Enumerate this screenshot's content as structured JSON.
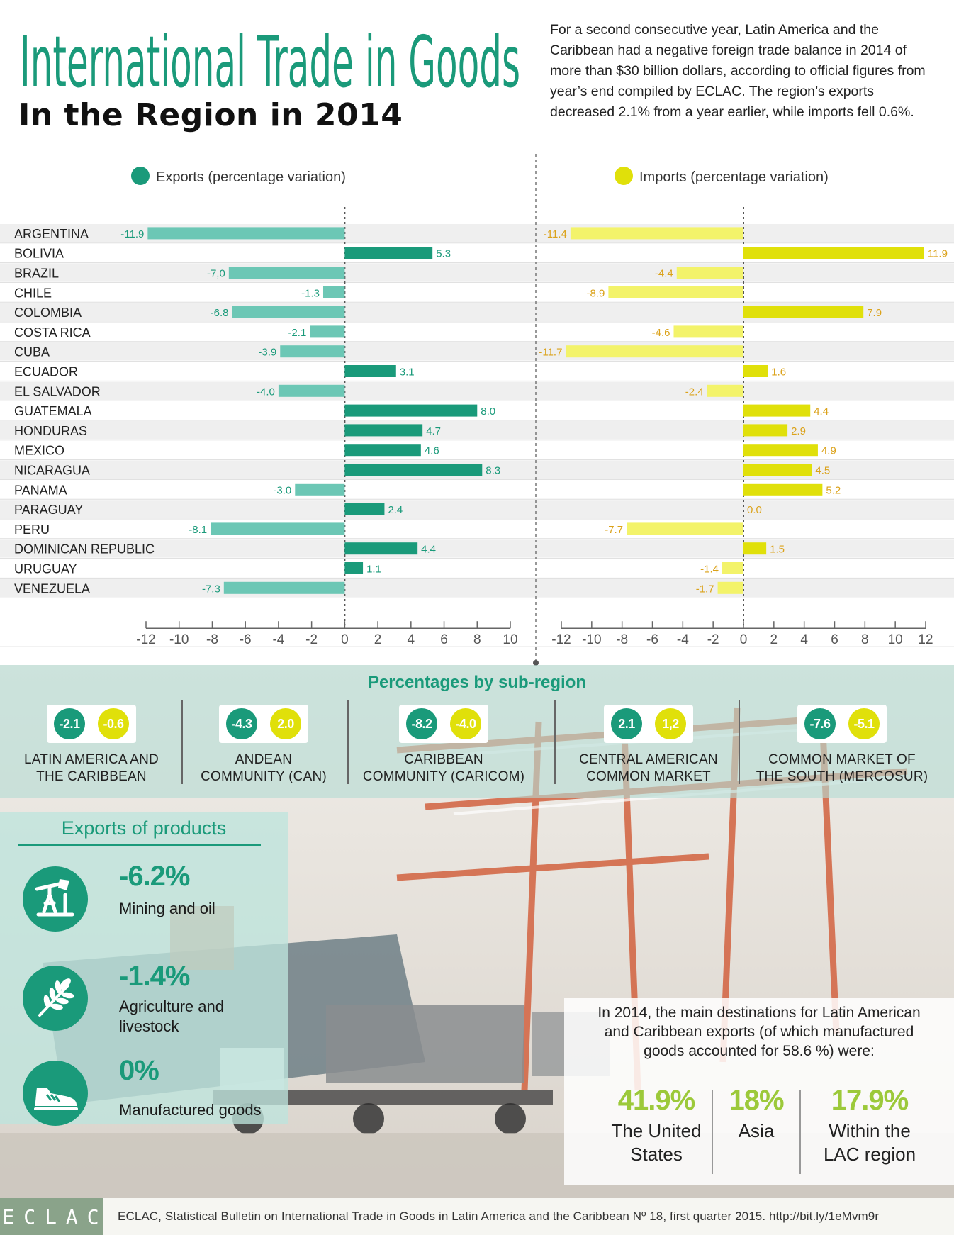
{
  "header": {
    "title": "International Trade in Goods",
    "subtitle": "In the Region in 2014",
    "intro": "For a second consecutive year, Latin America and the Caribbean had a negative foreign trade balance in 2014 of more than $30 billion dollars, according to official figures from year’s end compiled by ECLAC. The region’s exports decreased 2.1% from a year earlier, while imports fell 0.6%."
  },
  "colors": {
    "exports": "#1a9a7a",
    "exports_neg": "#6cc7b5",
    "imports": "#e0e00a",
    "imports_neg": "#f3f36a",
    "title": "#1a9a7a",
    "accent_green": "#9cc93a",
    "label_exports": "#1a9a7a",
    "label_imports": "#dba21a"
  },
  "chart_data": [
    {
      "type": "bar",
      "title": "Exports (percentage variation)",
      "orientation": "horizontal",
      "categories": [
        "ARGENTINA",
        "BOLIVIA",
        "BRAZIL",
        "CHILE",
        "COLOMBIA",
        "COSTA RICA",
        "CUBA",
        "ECUADOR",
        "EL SALVADOR",
        "GUATEMALA",
        "HONDURAS",
        "MEXICO",
        "NICARAGUA",
        "PANAMA",
        "PARAGUAY",
        "PERU",
        "DOMINICAN REPUBLIC",
        "URUGUAY",
        "VENEZUELA"
      ],
      "values": [
        -11.9,
        5.3,
        -7.0,
        -1.3,
        -6.8,
        -2.1,
        -3.9,
        3.1,
        -4.0,
        8.0,
        4.7,
        4.6,
        8.3,
        -3.0,
        2.4,
        -8.1,
        4.4,
        1.1,
        -7.3
      ],
      "value_labels": [
        "-11.9",
        "5.3",
        "-7,0",
        "-1.3",
        "-6.8",
        "-2.1",
        "-3.9",
        "3.1",
        "-4.0",
        "8.0",
        "4.7",
        "4.6",
        "8.3",
        "-3.0",
        "2.4",
        "-8.1",
        "4.4",
        "1.1",
        "-7.3"
      ],
      "xlim": [
        -12,
        10
      ],
      "ticks": [
        -12,
        -10,
        -8,
        -6,
        -4,
        -2,
        0,
        2,
        4,
        6,
        8,
        10
      ]
    },
    {
      "type": "bar",
      "title": "Imports (percentage variation)",
      "orientation": "horizontal",
      "categories": [
        "ARGENTINA",
        "BOLIVIA",
        "BRAZIL",
        "CHILE",
        "COLOMBIA",
        "COSTA RICA",
        "CUBA",
        "ECUADOR",
        "EL SALVADOR",
        "GUATEMALA",
        "HONDURAS",
        "MEXICO",
        "NICARAGUA",
        "PANAMA",
        "PARAGUAY",
        "PERU",
        "DOMINICAN REPUBLIC",
        "URUGUAY",
        "VENEZUELA"
      ],
      "values": [
        -11.4,
        11.9,
        -4.4,
        -8.9,
        7.9,
        -4.6,
        -11.7,
        1.6,
        -2.4,
        4.4,
        2.9,
        4.9,
        4.5,
        5.2,
        0.0,
        -7.7,
        1.5,
        -1.4,
        -1.7
      ],
      "value_labels": [
        "-11.4",
        "11.9",
        "-4.4",
        "-8.9",
        "7.9",
        "-4.6",
        "-11.7",
        "1.6",
        "-2.4",
        "4.4",
        "2.9",
        "4.9",
        "4.5",
        "5.2",
        "0.0",
        "-7.7",
        "1.5",
        "-1.4",
        "-1.7"
      ],
      "xlim": [
        -12,
        12
      ],
      "ticks": [
        -12,
        -10,
        -8,
        -6,
        -4,
        -2,
        0,
        2,
        4,
        6,
        8,
        10,
        12
      ]
    }
  ],
  "subregions": {
    "title": "Percentages by sub-region",
    "items": [
      {
        "exports": "-2.1",
        "imports": "-0.6",
        "label_1": "LATIN AMERICA AND",
        "label_2": "THE CARIBBEAN"
      },
      {
        "exports": "-4.3",
        "imports": "2.0",
        "label_1": "ANDEAN",
        "label_2": "COMMUNITY (CAN)"
      },
      {
        "exports": "-8.2",
        "imports": "-4.0",
        "label_1": "CARIBBEAN",
        "label_2": "COMMUNITY (CARICOM)"
      },
      {
        "exports": "2.1",
        "imports": "1,2",
        "label_1": "CENTRAL AMERICAN",
        "label_2": "COMMON MARKET"
      },
      {
        "exports": "-7.6",
        "imports": "-5.1",
        "label_1": "COMMON MARKET OF",
        "label_2": "THE SOUTH (MERCOSUR)"
      }
    ]
  },
  "products": {
    "title": "Exports of products",
    "items": [
      {
        "value": "-6.2%",
        "label_1": "Mining and oil",
        "label_2": "",
        "icon": "oil-pump-icon"
      },
      {
        "value": "-1.4%",
        "label_1": "Agriculture and",
        "label_2": "livestock",
        "icon": "wheat-icon"
      },
      {
        "value": "0%",
        "label_1": "Manufactured goods",
        "label_2": "",
        "icon": "sneaker-icon"
      }
    ]
  },
  "destinations": {
    "text": "In 2014, the main destinations for Latin American and Caribbean exports (of which manufactured goods accounted for 58.6 %) were:",
    "items": [
      {
        "pct": "41.9%",
        "label_1": "The United",
        "label_2": "States"
      },
      {
        "pct": "18%",
        "label_1": "Asia",
        "label_2": ""
      },
      {
        "pct": "17.9%",
        "label_1": "Within the",
        "label_2": "LAC region"
      }
    ]
  },
  "footer": {
    "logo": "ECLAC",
    "source": "ECLAC, Statistical Bulletin on International Trade in Goods in Latin America and the Caribbean Nº 18, first quarter 2015. http://bit.ly/1eMvm9r"
  }
}
